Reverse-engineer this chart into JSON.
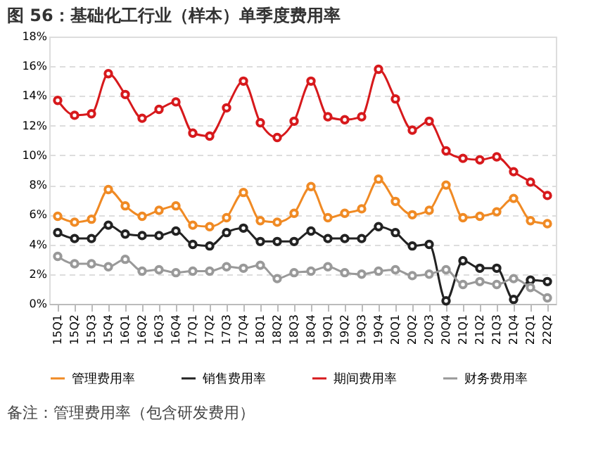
{
  "chart_data": {
    "type": "line",
    "title": "图 56：基础化工行业（样本）单季度费用率",
    "categories": [
      "15Q1",
      "15Q2",
      "15Q3",
      "15Q4",
      "16Q1",
      "16Q2",
      "16Q3",
      "16Q4",
      "17Q1",
      "17Q2",
      "17Q3",
      "17Q4",
      "18Q1",
      "18Q2",
      "18Q3",
      "18Q4",
      "19Q1",
      "19Q2",
      "19Q3",
      "19Q4",
      "20Q1",
      "20Q2",
      "20Q3",
      "20Q4",
      "21Q1",
      "21Q2",
      "21Q3",
      "21Q4",
      "22Q1",
      "22Q2"
    ],
    "series": [
      {
        "name": "管理费用率",
        "color": "#f08a24",
        "values": [
          5.9,
          5.5,
          5.7,
          7.7,
          6.6,
          5.9,
          6.3,
          6.6,
          5.3,
          5.2,
          5.8,
          7.5,
          5.6,
          5.5,
          6.1,
          7.9,
          5.8,
          6.1,
          6.4,
          8.4,
          6.9,
          6.0,
          6.3,
          8.0,
          5.8,
          5.9,
          6.2,
          7.1,
          5.6,
          5.4
        ]
      },
      {
        "name": "销售费用率",
        "color": "#222222",
        "values": [
          4.8,
          4.4,
          4.4,
          5.3,
          4.7,
          4.6,
          4.6,
          4.9,
          4.0,
          3.9,
          4.8,
          5.1,
          4.2,
          4.2,
          4.2,
          4.9,
          4.4,
          4.4,
          4.4,
          5.2,
          4.8,
          3.9,
          4.0,
          0.2,
          2.9,
          2.4,
          2.4,
          0.3,
          1.6,
          1.5
        ]
      },
      {
        "name": "期间费用率",
        "color": "#d7191c",
        "values": [
          13.7,
          12.7,
          12.8,
          15.5,
          14.1,
          12.5,
          13.1,
          13.6,
          11.5,
          11.3,
          13.2,
          15.0,
          12.2,
          11.2,
          12.3,
          15.0,
          12.6,
          12.4,
          12.6,
          15.8,
          13.8,
          11.7,
          12.3,
          10.3,
          9.8,
          9.7,
          9.9,
          8.9,
          8.2,
          7.3
        ]
      },
      {
        "name": "财务费用率",
        "color": "#999999",
        "values": [
          3.2,
          2.7,
          2.7,
          2.5,
          3.0,
          2.2,
          2.3,
          2.1,
          2.2,
          2.2,
          2.5,
          2.4,
          2.6,
          1.7,
          2.1,
          2.2,
          2.5,
          2.1,
          2.0,
          2.2,
          2.3,
          1.9,
          2.0,
          2.3,
          1.3,
          1.5,
          1.3,
          1.7,
          1.1,
          0.4
        ]
      }
    ],
    "ylim": [
      0,
      18
    ],
    "yticks": [
      {
        "value": 0,
        "label": "0%"
      },
      {
        "value": 2,
        "label": "2%"
      },
      {
        "value": 4,
        "label": "4%"
      },
      {
        "value": 6,
        "label": "6%"
      },
      {
        "value": 8,
        "label": "8%"
      },
      {
        "value": 10,
        "label": "10%"
      },
      {
        "value": 12,
        "label": "12%"
      },
      {
        "value": 14,
        "label": "14%"
      },
      {
        "value": 16,
        "label": "16%"
      },
      {
        "value": 18,
        "label": "18%"
      }
    ],
    "grid": "y",
    "legend": "bottom",
    "marker": "circle",
    "line_style": "solid",
    "annotations": [
      "备注：管理费用率（包含研发费用）"
    ]
  }
}
